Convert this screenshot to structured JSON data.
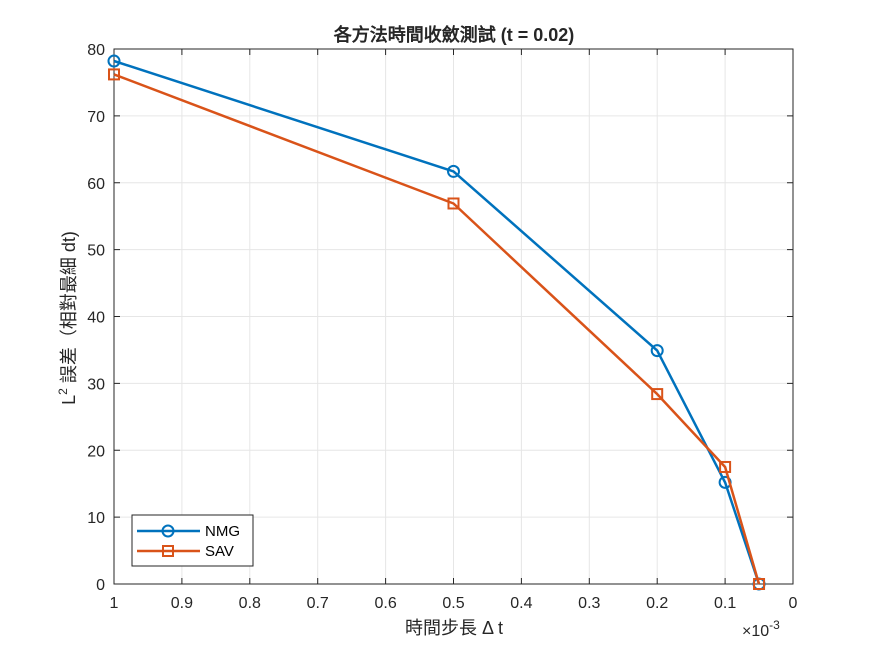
{
  "chart_data": {
    "type": "line",
    "title": "各方法時間收斂測試 (t = 0.02)",
    "xlabel": "時間步長 Δ t",
    "ylabel_main": "L",
    "ylabel_sup": "2",
    "ylabel_rest": " 誤差（相對最細 dt)",
    "x_exponent_base": "×10",
    "x_exponent_power": "-3",
    "x_reversed": true,
    "xlim": [
      0,
      1
    ],
    "ylim": [
      0,
      80
    ],
    "x_ticks": [
      1,
      0.9,
      0.8,
      0.7,
      0.6,
      0.5,
      0.4,
      0.3,
      0.2,
      0.1,
      0
    ],
    "x_tick_labels": [
      "1",
      "0.9",
      "0.8",
      "0.7",
      "0.6",
      "0.5",
      "0.4",
      "0.3",
      "0.2",
      "0.1",
      "0"
    ],
    "y_ticks": [
      0,
      10,
      20,
      30,
      40,
      50,
      60,
      70,
      80
    ],
    "y_tick_labels": [
      "0",
      "10",
      "20",
      "30",
      "40",
      "50",
      "60",
      "70",
      "80"
    ],
    "grid": true,
    "legend_position": "bottom-left",
    "series": [
      {
        "name": "NMG",
        "color": "#0072BD",
        "marker": "circle",
        "x": [
          1,
          0.5,
          0.2,
          0.1,
          0.05
        ],
        "y": [
          78.2,
          61.7,
          34.9,
          15.2,
          0
        ]
      },
      {
        "name": "SAV",
        "color": "#D95319",
        "marker": "square",
        "x": [
          1,
          0.5,
          0.2,
          0.1,
          0.05
        ],
        "y": [
          76.2,
          56.9,
          28.4,
          17.5,
          0
        ]
      }
    ]
  }
}
